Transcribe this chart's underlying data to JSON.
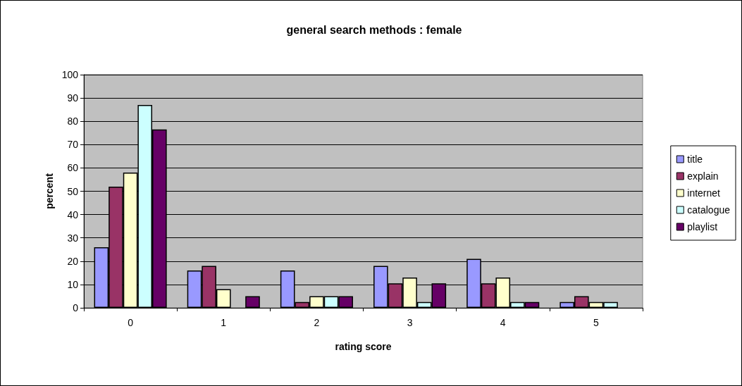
{
  "chart_data": {
    "type": "bar",
    "title": "general search methods : female",
    "xlabel": "rating score",
    "ylabel": "percent",
    "categories": [
      "0",
      "1",
      "2",
      "3",
      "4",
      "5"
    ],
    "series": [
      {
        "name": "title",
        "color": "#9999ff",
        "values": [
          26,
          16,
          16,
          18,
          21,
          2.5
        ]
      },
      {
        "name": "explain",
        "color": "#993366",
        "values": [
          52,
          18,
          2.5,
          10.5,
          10.5,
          5
        ]
      },
      {
        "name": "internet",
        "color": "#ffffcc",
        "values": [
          58,
          8,
          5,
          13,
          13,
          2.5
        ]
      },
      {
        "name": "catalogue",
        "color": "#ccffff",
        "values": [
          87,
          0,
          5,
          2.5,
          2.5,
          2.5
        ]
      },
      {
        "name": "playlist",
        "color": "#660066",
        "values": [
          76.5,
          5,
          5,
          10.5,
          2.5,
          0
        ]
      }
    ],
    "ylim": [
      0,
      100
    ],
    "yticks": [
      0,
      10,
      20,
      30,
      40,
      50,
      60,
      70,
      80,
      90,
      100
    ],
    "grid": "y",
    "legend": "right"
  }
}
